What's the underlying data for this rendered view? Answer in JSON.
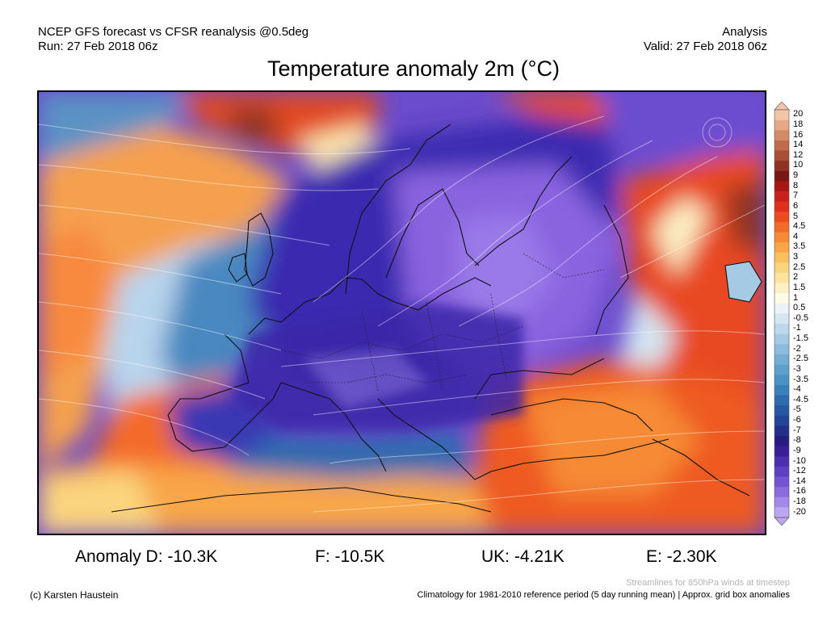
{
  "header": {
    "left_line1": "NCEP GFS forecast vs CFSR reanalysis @0.5deg",
    "left_line2": "Run: 27 Feb 2018 06z",
    "right_line1": "Analysis",
    "right_line2": "Valid: 27 Feb 2018 06z"
  },
  "title": "Temperature anomaly 2m (°C)",
  "colorbar": {
    "labels": [
      "20",
      "18",
      "16",
      "14",
      "12",
      "10",
      "9",
      "8",
      "7",
      "6",
      "5",
      "4.5",
      "4",
      "3.5",
      "3",
      "2.5",
      "2",
      "1.5",
      "1",
      "0.5",
      "-0.5",
      "-1",
      "-1.5",
      "-2",
      "-2.5",
      "-3",
      "-3.5",
      "-4",
      "-4.5",
      "-5",
      "-6",
      "-7",
      "-8",
      "-9",
      "-10",
      "-12",
      "-14",
      "-16",
      "-18",
      "-20"
    ],
    "colors": [
      "#f2c4a8",
      "#e6a886",
      "#d48a66",
      "#c06c4c",
      "#a85036",
      "#8e3424",
      "#7a1818",
      "#a81616",
      "#c8201a",
      "#e0301c",
      "#ee4a20",
      "#f46a2a",
      "#f68a36",
      "#f8a648",
      "#fac060",
      "#fbd47e",
      "#fce4a0",
      "#fdf0c4",
      "#fefae8",
      "#ecf2f8",
      "#d4e6f2",
      "#bcd8ec",
      "#a4cae4",
      "#8cbcdc",
      "#74aed4",
      "#5ea0cc",
      "#4a92c4",
      "#3a80ba",
      "#2e6cae",
      "#2658a2",
      "#224496",
      "#22308a",
      "#281c80",
      "#3a1e96",
      "#4c2eae",
      "#5e40c2",
      "#7454d2",
      "#8a6cde",
      "#a288e8",
      "#bca6f0"
    ]
  },
  "anomalies": {
    "germany": "Anomaly D: -10.3K",
    "france": "F: -10.5K",
    "uk": "UK: -4.21K",
    "spain": "E: -2.30K"
  },
  "notes": {
    "streamlines": "Streamlines for 850hPa winds at timestep",
    "credit": "(c) Karsten Haustein",
    "climatology": "Climatology for 1981-2010 reference period (5 day running mean) | Approx. grid box anomalies"
  }
}
